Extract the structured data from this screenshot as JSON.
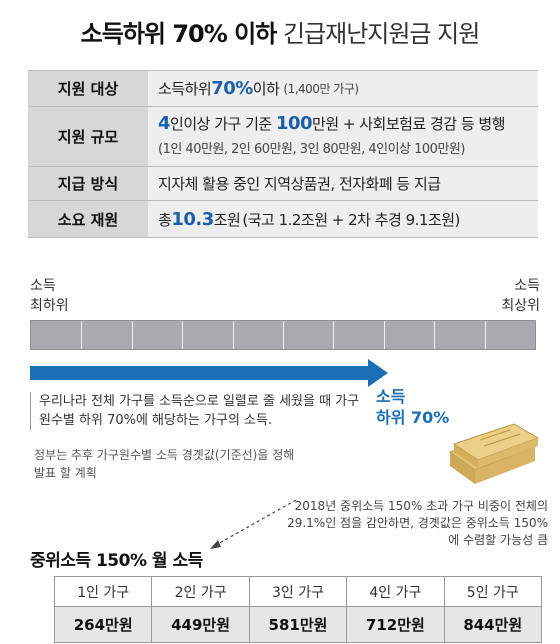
{
  "title": {
    "bold": "소득하위 70% 이하",
    "rest": "긴급재난지원금 지원"
  },
  "info": [
    {
      "label": "지원 대상",
      "main": "소득하위 ",
      "highlight": "70%",
      "after": " 이하",
      "sub": "(1,400만 가구)"
    },
    {
      "label": "지원 규모",
      "h1": "4",
      "t1": "인이상 가구 기준 ",
      "h2": "100",
      "t2": "만원 + 사회보험료 경감 등 병행",
      "sub": "(1인 40만원, 2인 60만원, 3인 80만원, 4인이상 100만원)"
    },
    {
      "label": "지급 방식",
      "text": "지자체 활용 중인 지역상품권, 전자화폐 등 지급"
    },
    {
      "label": "소요 재원",
      "pre": "총 ",
      "highlight": "10.3",
      "after": "조원",
      "sub": " (국고 1.2조원 + 2차 추경 9.1조원)"
    }
  ],
  "bar": {
    "left_label": [
      "소득",
      "최하위"
    ],
    "right_label": [
      "소득",
      "최상위"
    ],
    "arrow_fraction": 0.7,
    "arrow_label": [
      "소득",
      "하위 70%"
    ]
  },
  "description": "우리나라 전체 가구를 소득순으로 일렬로 줄 세웠을 때 가구원수별 하위 70%에 해당하는 가구의 소득.",
  "note": "정부는 추후 가구원수별 소득 경곗값(기준선)을 정해 발표 할 계획",
  "footnote": "2018년 중위소득 150% 초과 가구 비중이 전체의 29.1%인 점을 감안하면, 경곗값은 중위소득 150%에 수렴할 가능성 큼",
  "table": {
    "title": "중위소득 150% 월 소득",
    "headers": [
      "1인 가구",
      "2인 가구",
      "3인 가구",
      "4인 가구",
      "5인 가구"
    ],
    "values": [
      "264만원",
      "449만원",
      "581만원",
      "712만원",
      "844만원"
    ]
  },
  "colors": {
    "accent": "#1a6eb6",
    "label_bg": "#d7d7d7",
    "value_bg": "#eeeeee",
    "bar": "#a8aab0"
  },
  "icons": [
    "money-stack-icon"
  ]
}
